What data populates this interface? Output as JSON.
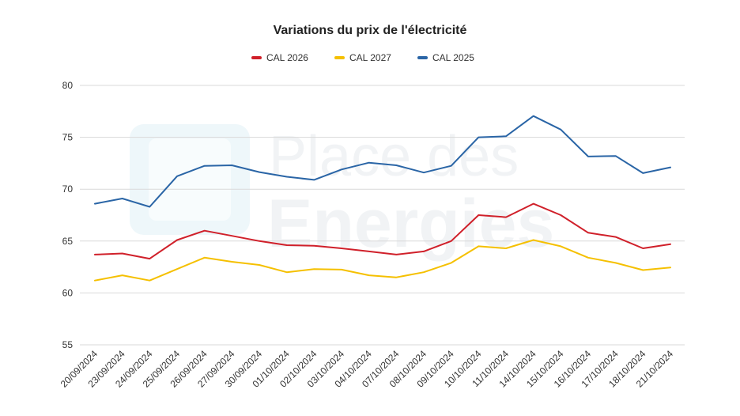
{
  "chart_data": {
    "type": "line",
    "title": "Variations du prix de l'électricité",
    "xlabel": "",
    "ylabel": "",
    "ylim": [
      55,
      80
    ],
    "yticks": [
      "55",
      "60",
      "65",
      "70",
      "75",
      "80"
    ],
    "grid": true,
    "legend_position": "top",
    "categories": [
      "20/09/2024",
      "23/09/2024",
      "24/09/2024",
      "25/09/2024",
      "26/09/2024",
      "27/09/2024",
      "30/09/2024",
      "01/10/2024",
      "02/10/2024",
      "03/10/2024",
      "04/10/2024",
      "07/10/2024",
      "08/10/2024",
      "09/10/2024",
      "10/10/2024",
      "11/10/2024",
      "14/10/2024",
      "15/10/2024",
      "16/10/2024",
      "17/10/2024",
      "18/10/2024",
      "21/10/2024"
    ],
    "series": [
      {
        "name": "CAL 2026",
        "color": "#d0202a",
        "values": [
          63.7,
          63.8,
          63.3,
          65.1,
          66.0,
          65.5,
          65.0,
          64.6,
          64.55,
          64.3,
          64.0,
          63.7,
          64.0,
          65.0,
          67.5,
          67.3,
          68.6,
          67.5,
          65.8,
          65.4,
          64.3,
          64.7
        ]
      },
      {
        "name": "CAL 2027",
        "color": "#f5c000",
        "values": [
          61.2,
          61.7,
          61.2,
          62.3,
          63.4,
          63.0,
          62.7,
          62.0,
          62.3,
          62.25,
          61.7,
          61.5,
          62.0,
          62.9,
          64.5,
          64.3,
          65.1,
          64.5,
          63.4,
          62.9,
          62.2,
          62.45
        ]
      },
      {
        "name": "CAL 2025",
        "color": "#2a65a6",
        "values": [
          68.6,
          69.1,
          68.3,
          71.25,
          72.25,
          72.3,
          71.65,
          71.2,
          70.9,
          71.9,
          72.55,
          72.3,
          71.6,
          72.25,
          75.0,
          75.1,
          77.05,
          75.75,
          73.15,
          73.2,
          71.55,
          72.1
        ]
      }
    ]
  },
  "watermark": {
    "line1": "Place des",
    "line2": "Energies"
  }
}
